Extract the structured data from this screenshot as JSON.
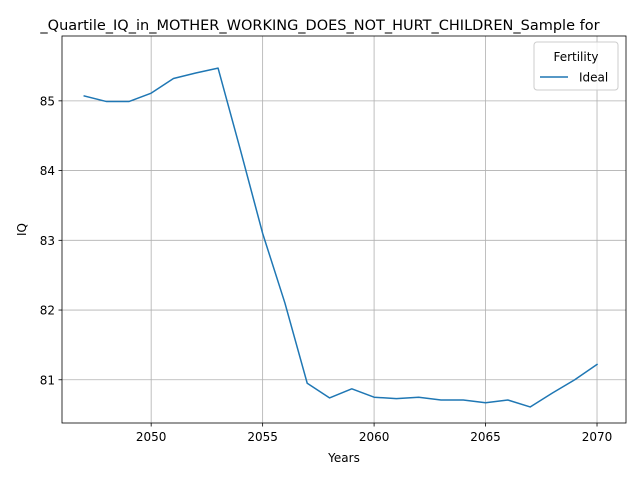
{
  "chart_data": {
    "type": "line",
    "title": "_Quartile_IQ_in_MOTHER_WORKING_DOES_NOT_HURT_CHILDREN_Sample for",
    "xlabel": "Years",
    "ylabel": "IQ",
    "xlim": [
      2046,
      2071.3
    ],
    "ylim": [
      80.38,
      85.93
    ],
    "xticks": [
      2050,
      2055,
      2060,
      2065,
      2070
    ],
    "yticks": [
      81,
      82,
      83,
      84,
      85
    ],
    "grid": true,
    "legend": {
      "title": "Fertility",
      "placement": "top-right"
    },
    "series": [
      {
        "name": "Ideal",
        "color": "#1f77b4",
        "x": [
          2047,
          2048,
          2049,
          2050,
          2051,
          2052,
          2053,
          2054,
          2055,
          2056,
          2057,
          2058,
          2059,
          2060,
          2061,
          2062,
          2063,
          2064,
          2065,
          2066,
          2067,
          2068,
          2069,
          2070
        ],
        "y": [
          85.07,
          84.99,
          84.99,
          85.11,
          85.32,
          85.4,
          85.47,
          84.3,
          83.1,
          82.1,
          80.95,
          80.74,
          80.87,
          80.75,
          80.73,
          80.75,
          80.71,
          80.71,
          80.67,
          80.71,
          80.61,
          80.81,
          81.0,
          81.22
        ]
      }
    ]
  }
}
